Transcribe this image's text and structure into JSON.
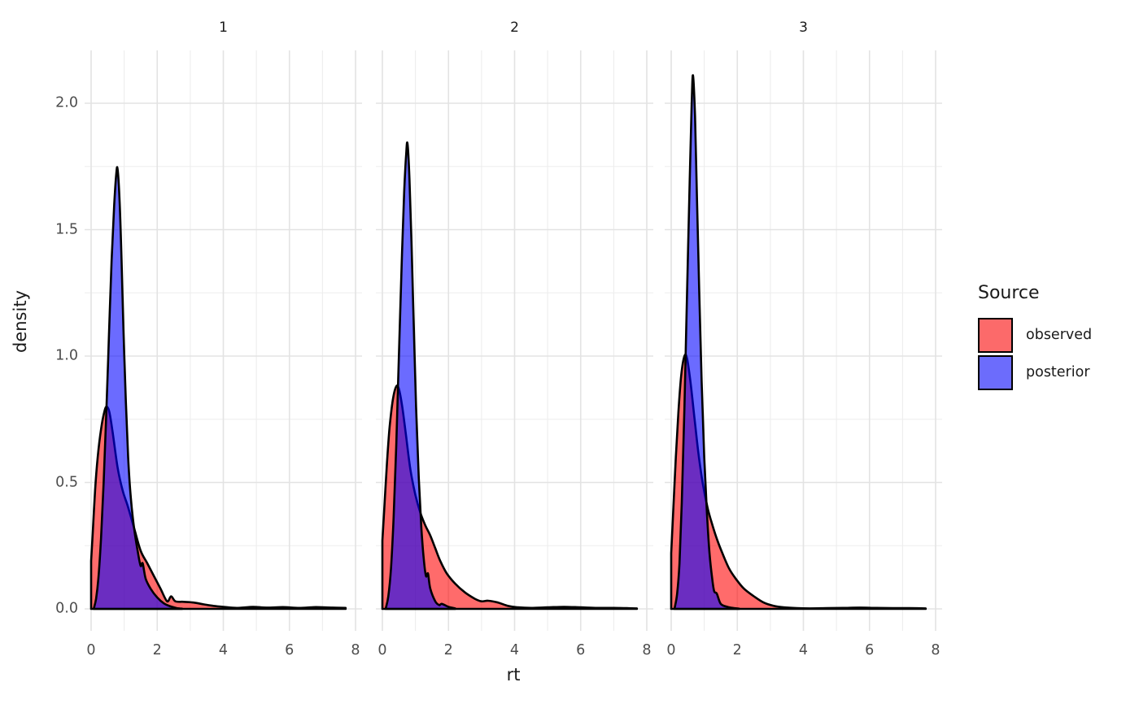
{
  "figure": {
    "x_axis_title": "rt",
    "y_axis_title": "density",
    "y_tick_labels": [
      "0.0",
      "0.5",
      "1.0",
      "1.5",
      "2.0"
    ],
    "x_tick_labels": [
      "0",
      "2",
      "4",
      "6",
      "8"
    ]
  },
  "legend": {
    "title": "Source",
    "items": [
      {
        "label": "observed",
        "swatch_color": "#fc6a6a"
      },
      {
        "label": "posterior",
        "swatch_color": "#6c6cfc"
      }
    ]
  },
  "colors": {
    "observed_fill": "#FF0000",
    "posterior_fill": "#0000FF",
    "fill_opacity": 0.58,
    "outline": "#000000",
    "grid_major": "#e3e3e3",
    "grid_minor": "#ededed",
    "tick_text": "#4d4d4d",
    "title_text": "#1a1a1a",
    "background": "#ffffff"
  },
  "chart_data": {
    "type": "area",
    "subtype": "overlaid-density",
    "xlabel": "rt",
    "ylabel": "density",
    "xlim": [
      0,
      8
    ],
    "ylim": [
      0,
      2.21
    ],
    "x_ticks": [
      0,
      2,
      4,
      6,
      8
    ],
    "x_minor_ticks": [
      1,
      3,
      5,
      7
    ],
    "y_ticks": [
      0.0,
      0.5,
      1.0,
      1.5,
      2.0
    ],
    "y_minor_ticks": [
      0.25,
      0.75,
      1.25,
      1.75
    ],
    "grid": true,
    "legend_title": "Source",
    "legend_position": "right",
    "series_names": [
      "observed",
      "posterior"
    ],
    "facets": [
      {
        "label": "1",
        "series": [
          {
            "name": "observed",
            "peak": [
              0.47,
              0.8
            ],
            "points": [
              [
                0,
                0.19
              ],
              [
                0.05,
                0.3
              ],
              [
                0.12,
                0.47
              ],
              [
                0.2,
                0.6
              ],
              [
                0.3,
                0.71
              ],
              [
                0.4,
                0.78
              ],
              [
                0.47,
                0.8
              ],
              [
                0.55,
                0.78
              ],
              [
                0.65,
                0.7
              ],
              [
                0.8,
                0.56
              ],
              [
                0.95,
                0.47
              ],
              [
                1.1,
                0.41
              ],
              [
                1.3,
                0.32
              ],
              [
                1.5,
                0.23
              ],
              [
                1.7,
                0.18
              ],
              [
                1.9,
                0.13
              ],
              [
                2.1,
                0.08
              ],
              [
                2.3,
                0.03
              ],
              [
                2.42,
                0.05
              ],
              [
                2.55,
                0.03
              ],
              [
                2.8,
                0.028
              ],
              [
                3.1,
                0.025
              ],
              [
                3.4,
                0.018
              ],
              [
                3.7,
                0.012
              ],
              [
                4.0,
                0.008
              ],
              [
                4.4,
                0.004
              ],
              [
                4.9,
                0.008
              ],
              [
                5.3,
                0.005
              ],
              [
                5.8,
                0.007
              ],
              [
                6.3,
                0.004
              ],
              [
                6.8,
                0.007
              ],
              [
                7.3,
                0.005
              ],
              [
                7.7,
                0.004
              ]
            ]
          },
          {
            "name": "posterior",
            "peak": [
              0.8,
              1.74
            ],
            "points": [
              [
                0.08,
                0.001
              ],
              [
                0.15,
                0.04
              ],
              [
                0.22,
                0.12
              ],
              [
                0.3,
                0.28
              ],
              [
                0.38,
                0.5
              ],
              [
                0.46,
                0.78
              ],
              [
                0.54,
                1.08
              ],
              [
                0.62,
                1.38
              ],
              [
                0.7,
                1.6
              ],
              [
                0.76,
                1.72
              ],
              [
                0.8,
                1.74
              ],
              [
                0.86,
                1.62
              ],
              [
                0.92,
                1.38
              ],
              [
                0.98,
                1.1
              ],
              [
                1.05,
                0.82
              ],
              [
                1.12,
                0.6
              ],
              [
                1.2,
                0.44
              ],
              [
                1.3,
                0.32
              ],
              [
                1.42,
                0.22
              ],
              [
                1.5,
                0.17
              ],
              [
                1.56,
                0.18
              ],
              [
                1.65,
                0.12
              ],
              [
                1.8,
                0.08
              ],
              [
                2.0,
                0.045
              ],
              [
                2.2,
                0.022
              ],
              [
                2.4,
                0.01
              ],
              [
                2.6,
                0.003
              ],
              [
                2.75,
                0.001
              ]
            ]
          }
        ]
      },
      {
        "label": "2",
        "series": [
          {
            "name": "observed",
            "peak": [
              0.42,
              0.88
            ],
            "points": [
              [
                0,
                0.27
              ],
              [
                0.06,
                0.4
              ],
              [
                0.14,
                0.58
              ],
              [
                0.22,
                0.72
              ],
              [
                0.32,
                0.83
              ],
              [
                0.42,
                0.88
              ],
              [
                0.5,
                0.87
              ],
              [
                0.6,
                0.8
              ],
              [
                0.72,
                0.68
              ],
              [
                0.85,
                0.55
              ],
              [
                1.0,
                0.45
              ],
              [
                1.15,
                0.38
              ],
              [
                1.3,
                0.33
              ],
              [
                1.45,
                0.29
              ],
              [
                1.6,
                0.24
              ],
              [
                1.75,
                0.19
              ],
              [
                1.95,
                0.14
              ],
              [
                2.2,
                0.1
              ],
              [
                2.5,
                0.065
              ],
              [
                2.8,
                0.04
              ],
              [
                3.0,
                0.03
              ],
              [
                3.2,
                0.032
              ],
              [
                3.5,
                0.025
              ],
              [
                3.8,
                0.012
              ],
              [
                4.1,
                0.006
              ],
              [
                4.5,
                0.004
              ],
              [
                5.0,
                0.006
              ],
              [
                5.5,
                0.008
              ],
              [
                6.0,
                0.006
              ],
              [
                6.5,
                0.004
              ],
              [
                7.0,
                0.004
              ],
              [
                7.4,
                0.003
              ],
              [
                7.7,
                0.002
              ]
            ]
          },
          {
            "name": "posterior",
            "peak": [
              0.76,
              1.84
            ],
            "points": [
              [
                0.1,
                0.001
              ],
              [
                0.18,
                0.05
              ],
              [
                0.26,
                0.16
              ],
              [
                0.34,
                0.36
              ],
              [
                0.42,
                0.65
              ],
              [
                0.5,
                1.0
              ],
              [
                0.58,
                1.35
              ],
              [
                0.66,
                1.65
              ],
              [
                0.72,
                1.8
              ],
              [
                0.76,
                1.84
              ],
              [
                0.82,
                1.7
              ],
              [
                0.88,
                1.45
              ],
              [
                0.95,
                1.12
              ],
              [
                1.02,
                0.8
              ],
              [
                1.1,
                0.52
              ],
              [
                1.18,
                0.32
              ],
              [
                1.25,
                0.2
              ],
              [
                1.32,
                0.13
              ],
              [
                1.38,
                0.14
              ],
              [
                1.45,
                0.08
              ],
              [
                1.6,
                0.03
              ],
              [
                1.72,
                0.015
              ],
              [
                1.8,
                0.02
              ],
              [
                2.0,
                0.008
              ],
              [
                2.2,
                0.002
              ]
            ]
          }
        ]
      },
      {
        "label": "3",
        "series": [
          {
            "name": "observed",
            "peak": [
              0.4,
              1.0
            ],
            "points": [
              [
                0,
                0.22
              ],
              [
                0.06,
                0.38
              ],
              [
                0.14,
                0.6
              ],
              [
                0.22,
                0.78
              ],
              [
                0.3,
                0.92
              ],
              [
                0.4,
                1.0
              ],
              [
                0.48,
                0.99
              ],
              [
                0.58,
                0.9
              ],
              [
                0.7,
                0.76
              ],
              [
                0.82,
                0.62
              ],
              [
                0.95,
                0.5
              ],
              [
                1.1,
                0.4
              ],
              [
                1.25,
                0.33
              ],
              [
                1.4,
                0.27
              ],
              [
                1.55,
                0.22
              ],
              [
                1.75,
                0.16
              ],
              [
                1.95,
                0.12
              ],
              [
                2.2,
                0.08
              ],
              [
                2.5,
                0.05
              ],
              [
                2.8,
                0.025
              ],
              [
                3.1,
                0.012
              ],
              [
                3.4,
                0.006
              ],
              [
                3.8,
                0.003
              ],
              [
                4.2,
                0.002
              ],
              [
                4.7,
                0.003
              ],
              [
                5.2,
                0.004
              ],
              [
                5.7,
                0.005
              ],
              [
                6.2,
                0.004
              ],
              [
                6.7,
                0.003
              ],
              [
                7.2,
                0.003
              ],
              [
                7.7,
                0.002
              ]
            ]
          },
          {
            "name": "posterior",
            "peak": [
              0.66,
              2.11
            ],
            "points": [
              [
                0.1,
                0.001
              ],
              [
                0.18,
                0.06
              ],
              [
                0.25,
                0.18
              ],
              [
                0.32,
                0.42
              ],
              [
                0.4,
                0.8
              ],
              [
                0.48,
                1.25
              ],
              [
                0.56,
                1.7
              ],
              [
                0.62,
                2.0
              ],
              [
                0.66,
                2.11
              ],
              [
                0.72,
                1.95
              ],
              [
                0.78,
                1.62
              ],
              [
                0.85,
                1.25
              ],
              [
                0.92,
                0.9
              ],
              [
                1.0,
                0.6
              ],
              [
                1.08,
                0.38
              ],
              [
                1.16,
                0.22
              ],
              [
                1.24,
                0.12
              ],
              [
                1.3,
                0.07
              ],
              [
                1.38,
                0.06
              ],
              [
                1.5,
                0.02
              ],
              [
                1.7,
                0.008
              ],
              [
                1.9,
                0.003
              ],
              [
                2.05,
                0.001
              ]
            ]
          }
        ]
      }
    ]
  }
}
